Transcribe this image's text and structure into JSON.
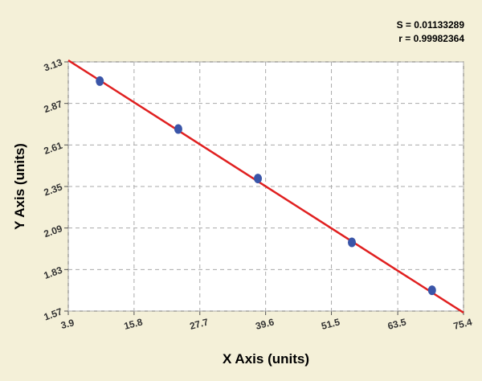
{
  "chart_data": {
    "type": "scatter",
    "annotations": [
      "S = 0.01133289",
      "r = 0.99982364"
    ],
    "x_label": "X Axis (units)",
    "y_label": "Y Axis (units)",
    "xlim": [
      3.9,
      75.4
    ],
    "xticks": [
      3.9,
      15.8,
      27.7,
      39.6,
      51.5,
      63.5,
      75.4
    ],
    "ylim": [
      1.57,
      3.13
    ],
    "yticks": [
      3.13,
      2.87,
      2.61,
      2.35,
      2.09,
      1.83,
      1.57
    ],
    "grid": true,
    "points": {
      "color": "#3a55a8",
      "x": [
        9.6,
        23.8,
        38.2,
        55.2,
        69.7
      ],
      "y": [
        3.01,
        2.71,
        2.4,
        2.0,
        1.7
      ]
    },
    "fit_line": {
      "color": "#e02020",
      "x": [
        3.9,
        75.4
      ],
      "y": [
        3.14,
        1.56
      ]
    }
  }
}
